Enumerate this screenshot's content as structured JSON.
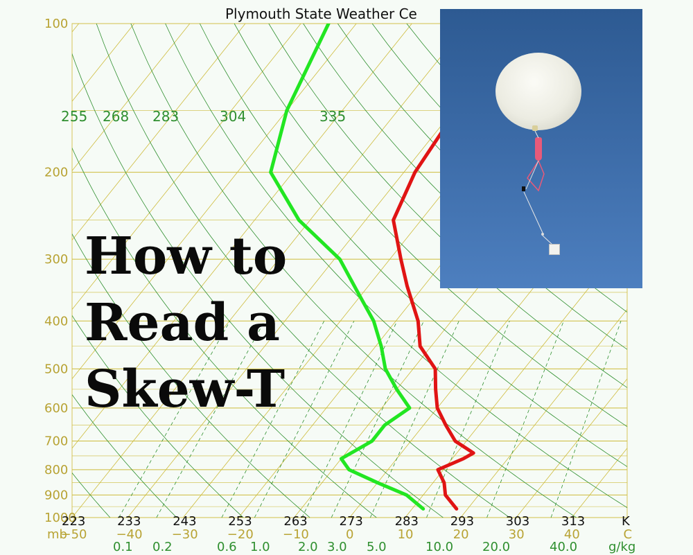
{
  "chart_data": {
    "type": "line",
    "title": "Plymouth State Weather Ce",
    "pressure_levels_mb": [
      100,
      200,
      300,
      400,
      500,
      600,
      700,
      800,
      900,
      1000
    ],
    "pressure_unit": "mb",
    "xlim_c": [
      -50,
      50
    ],
    "celsius_ticks": [
      -50,
      -40,
      -30,
      -20,
      -10,
      0,
      10,
      20,
      30,
      40
    ],
    "celsius_tick_labels": [
      "-50",
      "-40",
      "-30",
      "-20",
      "-10",
      "0",
      "10",
      "20",
      "30",
      "40",
      "C"
    ],
    "kelvin_ticks": [
      223,
      233,
      243,
      253,
      263,
      273,
      283,
      293,
      303,
      313
    ],
    "kelvin_unit": "K",
    "mixing_ratio_labels": [
      "0.1",
      "0.2",
      "0.6",
      "1.0",
      "2.0",
      "3.0",
      "5.0",
      "10.0",
      "20.0",
      "40.0"
    ],
    "mixing_ratio_unit": "g/kg",
    "theta_labels": [
      "255",
      "268",
      "283",
      "304",
      "335"
    ],
    "series": [
      {
        "color": "#e01414",
        "points": [
          [
            100,
            -30
          ],
          [
            118,
            -30
          ],
          [
            135,
            -33
          ],
          [
            155,
            -37
          ],
          [
            165,
            -39
          ],
          [
            200,
            -38
          ],
          [
            250,
            -35
          ],
          [
            300,
            -28
          ],
          [
            340,
            -23
          ],
          [
            400,
            -16
          ],
          [
            450,
            -12
          ],
          [
            500,
            -6
          ],
          [
            550,
            -3
          ],
          [
            600,
            0
          ],
          [
            650,
            4
          ],
          [
            700,
            8
          ],
          [
            740,
            13
          ],
          [
            760,
            12
          ],
          [
            800,
            9
          ],
          [
            850,
            12
          ],
          [
            900,
            14
          ],
          [
            960,
            18
          ]
        ]
      },
      {
        "color": "#22e622",
        "points": [
          [
            100,
            -75
          ],
          [
            150,
            -70
          ],
          [
            200,
            -64
          ],
          [
            250,
            -52
          ],
          [
            300,
            -39
          ],
          [
            350,
            -31
          ],
          [
            400,
            -24
          ],
          [
            450,
            -19
          ],
          [
            500,
            -15
          ],
          [
            550,
            -10
          ],
          [
            600,
            -5
          ],
          [
            650,
            -7
          ],
          [
            700,
            -7
          ],
          [
            760,
            -10
          ],
          [
            800,
            -7
          ],
          [
            850,
            0
          ],
          [
            900,
            7
          ],
          [
            960,
            12
          ]
        ]
      }
    ],
    "grid": true
  },
  "overlay": {
    "lines": [
      "How to",
      "Read a",
      "Skew-T"
    ]
  }
}
